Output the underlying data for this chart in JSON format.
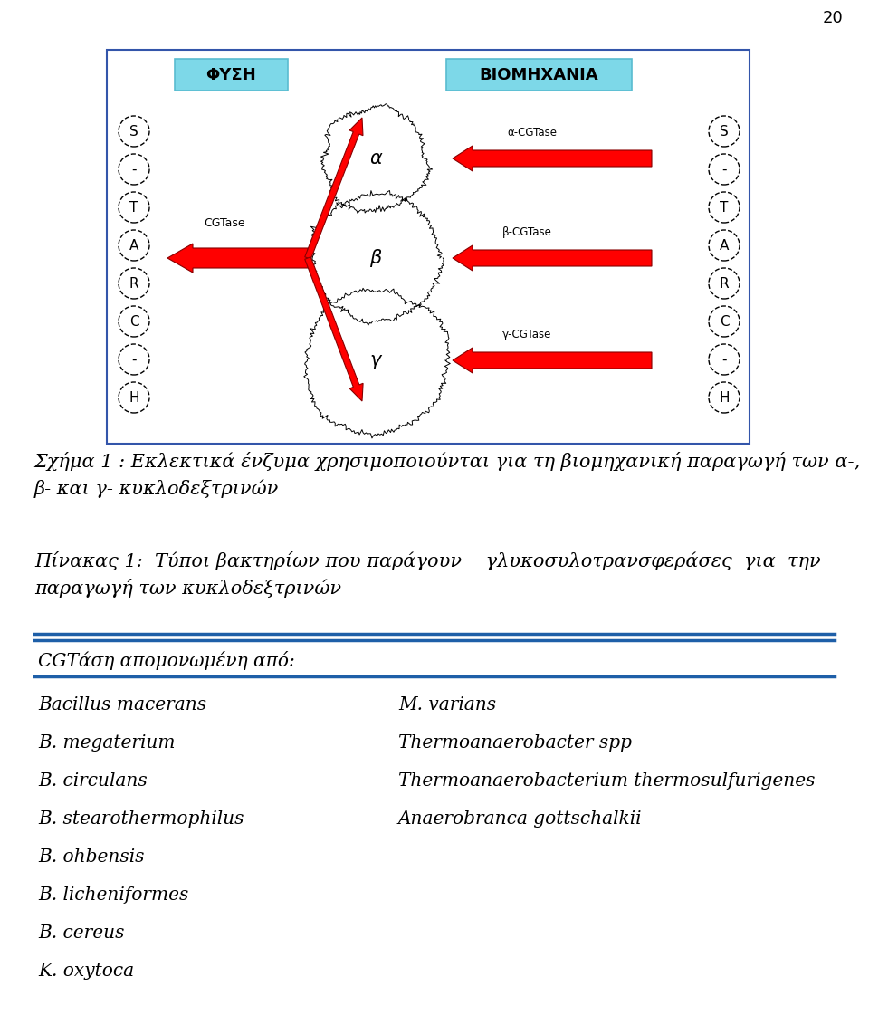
{
  "page_number": "20",
  "figure_caption_line1": "Σχήμα 1 : Εκλεκτικά ένζυμα χρησιμοποιούνται για τη βιομηχανική παραγωγή των α-,",
  "figure_caption_line2": "β- και γ- κυκλοδεξτρινών",
  "table_caption_line1": "Πίνακας 1:  Τύποι βακτηρίων που παράγουν    γλυκοσυλοτρανσφεράσες  για  την",
  "table_caption_line2": "παραγωγή των κυκλοδεξτρινών",
  "table_header": "CGTάση απομονωμένη από:",
  "left_column": [
    "Bacillus macerans",
    "B. megaterium",
    "B. circulans",
    "B. stearothermophilus",
    "B. ohbensis",
    "B. licheniformes",
    "B. cereus",
    "K. oxytoca"
  ],
  "right_column": [
    "M. varians",
    "Thermoanaerobacter spp",
    "Thermoanaerobacterium thermosulfurigenes",
    "Anaerobranca gottschalkii"
  ],
  "bg_color": "#ffffff",
  "text_color": "#000000",
  "blue_line_color": "#1e5fa8",
  "box_border_color": "#3355aa",
  "cyan_box_color": "#7dd8e8",
  "cyan_border_color": "#5abcd0"
}
